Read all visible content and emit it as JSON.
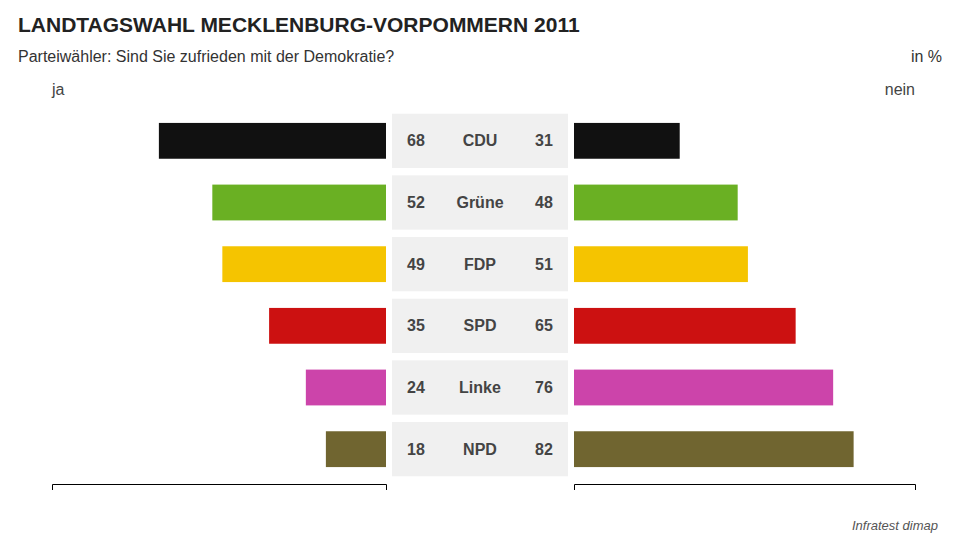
{
  "chart_data": {
    "type": "bar",
    "orientation": "horizontal",
    "title": "LANDTAGSWAHL MECKLENBURG-VORPOMMERN 2011",
    "subtitle": "Parteiwähler: Sind Sie zufrieden mit der Demokratie?",
    "annotations": [
      "in %"
    ],
    "source": "Infratest dimap",
    "categories": [
      "CDU",
      "Grüne",
      "FDP",
      "SPD",
      "Linke",
      "NPD"
    ],
    "series": [
      {
        "name": "ja",
        "values": [
          68,
          52,
          49,
          35,
          24,
          18
        ]
      },
      {
        "name": "nein",
        "values": [
          31,
          48,
          51,
          65,
          76,
          82
        ]
      }
    ],
    "colors": [
      "#111111",
      "#6ab023",
      "#f5c400",
      "#cc1111",
      "#cc44aa",
      "#706530"
    ],
    "xlim": [
      0,
      100
    ],
    "data_labels": true,
    "tick_labels": "y",
    "grid": false
  }
}
